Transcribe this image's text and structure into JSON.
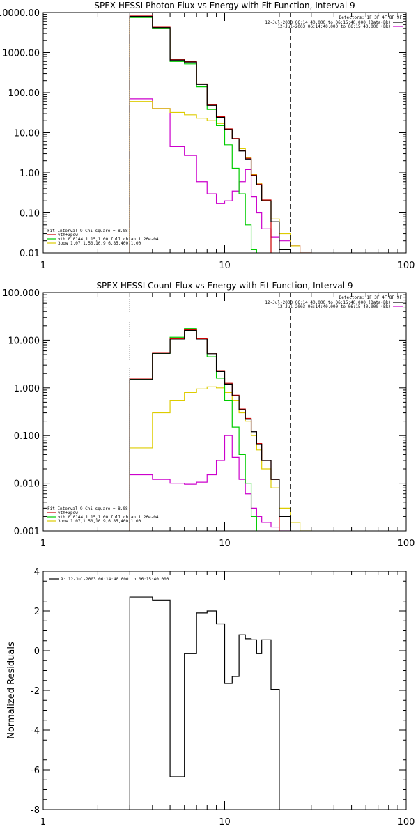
{
  "chart_data": [
    {
      "type": "line",
      "step": true,
      "title": "SPEX HESSI Photon Flux vs Energy with Fit Function, Interval 9",
      "xlabel": "",
      "ylabel": "",
      "xscale": "log",
      "yscale": "log",
      "xlim": [
        1,
        100
      ],
      "ylim": [
        0.01,
        10000
      ],
      "xticks": [
        1,
        10,
        100
      ],
      "xtick_labels": [
        "1",
        "10",
        "100"
      ],
      "yticks": [
        0.01,
        0.1,
        1,
        10,
        100,
        1000,
        10000
      ],
      "ytick_labels": [
        "0.01",
        "0.10",
        "1.00",
        "10.00",
        "100.00",
        "1000.00",
        "10000.00"
      ],
      "x_edges": [
        3,
        4,
        5,
        6,
        7,
        8,
        9,
        10,
        11,
        12,
        13,
        14,
        15,
        16,
        18,
        20,
        23,
        26,
        30
      ],
      "vlines": [
        {
          "x": 3,
          "style": "dotted",
          "color": "#ffaa00"
        },
        {
          "x": 23,
          "style": "dashed",
          "color": "#000000"
        }
      ],
      "legend_top": {
        "header": "Detectors: 1F 3F 4F 8F 9F",
        "entries": [
          {
            "label": "12-Jul-2003 06:14:40.000 to 06:15:40.000 (Data-Bk)",
            "color": "#000000"
          },
          {
            "label": "12-Jul-2003 06:14:40.000 to 06:15:40.000 (Bk)",
            "color": "#cc00cc"
          }
        ]
      },
      "legend_bottom": {
        "header": "Fit Interval 9   Chi-square = 8.08",
        "entries": [
          {
            "label": "vth+3pow",
            "color": "#cc0000"
          },
          {
            "label": "vth 0.0144,1.15,1.00  full chian 1.26e-04",
            "color": "#00cc00"
          },
          {
            "label": "3pow 1.07,1.50,10.9,6.85,400,1.00",
            "color": "#ddcc00"
          }
        ]
      },
      "series": [
        {
          "name": "Data-Bk",
          "color": "#000000",
          "values": [
            8000,
            4200,
            650,
            580,
            160,
            48,
            24,
            12,
            7,
            3.5,
            2.2,
            0.85,
            0.5,
            0.2,
            0.06,
            0.012
          ]
        },
        {
          "name": "vth+3pow",
          "color": "#cc0000",
          "values": [
            8200,
            4300,
            680,
            600,
            165,
            50,
            25,
            12.5,
            7.2,
            3.6,
            2.3,
            0.88,
            0.52,
            0.21
          ]
        },
        {
          "name": "vth",
          "color": "#00cc00",
          "values": [
            7500,
            4000,
            600,
            520,
            140,
            38,
            15,
            5,
            1.3,
            0.3,
            0.05,
            0.012
          ]
        },
        {
          "name": "3pow",
          "color": "#ddcc00",
          "values": [
            60,
            40,
            32,
            28,
            23,
            20,
            17,
            12,
            7,
            4,
            2.4,
            0.9,
            0.55,
            0.2,
            0.07,
            0.03,
            0.015,
            0.01
          ]
        },
        {
          "name": "Bk",
          "color": "#cc00cc",
          "values": [
            70,
            40,
            4.5,
            2.7,
            0.6,
            0.3,
            0.17,
            0.2,
            0.35,
            0.6,
            1.2,
            0.25,
            0.1,
            0.04,
            0.025,
            0.02,
            0.015,
            0.01
          ]
        }
      ]
    },
    {
      "type": "line",
      "step": true,
      "title": "SPEX HESSI Count Flux vs Energy with Fit Function, Interval 9",
      "xlabel": "",
      "ylabel": "",
      "xscale": "log",
      "yscale": "log",
      "xlim": [
        1,
        100
      ],
      "ylim": [
        0.001,
        100
      ],
      "xticks": [
        1,
        10,
        100
      ],
      "xtick_labels": [
        "1",
        "10",
        "100"
      ],
      "yticks": [
        0.001,
        0.01,
        0.1,
        1,
        10,
        100
      ],
      "ytick_labels": [
        "0.001",
        "0.010",
        "0.100",
        "1.000",
        "10.000",
        "100.000"
      ],
      "x_edges": [
        3,
        4,
        5,
        6,
        7,
        8,
        9,
        10,
        11,
        12,
        13,
        14,
        15,
        16,
        18,
        20,
        23,
        26,
        30
      ],
      "vlines": [
        {
          "x": 3,
          "style": "dotted",
          "color": "#000000"
        },
        {
          "x": 23,
          "style": "dashed",
          "color": "#000000"
        }
      ],
      "legend_top": {
        "header": "Detectors: 1F 3F 4F 8F 9F",
        "entries": [
          {
            "label": "12-Jul-2003 06:14:40.000 to 06:15:40.000 (Data-Bk)",
            "color": "#000000"
          },
          {
            "label": "12-Jul-2003 06:14:40.000 to 06:15:40.000 (Bk)",
            "color": "#cc00cc"
          }
        ]
      },
      "legend_bottom": {
        "header": "Fit Interval 9   Chi-square = 8.08",
        "entries": [
          {
            "label": "vth+3pow",
            "color": "#cc0000"
          },
          {
            "label": "vth 0.0144,1.15,1.00  full chian 1.26e-04",
            "color": "#00cc00"
          },
          {
            "label": "3pow 1.07,1.50,10.9,6.85,400,1.00",
            "color": "#ddcc00"
          }
        ]
      },
      "series": [
        {
          "name": "Data-Bk",
          "color": "#000000",
          "values": [
            1.5,
            5.3,
            10.5,
            16,
            10.5,
            5.2,
            2.2,
            1.2,
            0.68,
            0.35,
            0.22,
            0.12,
            0.065,
            0.03,
            0.012,
            0.002
          ]
        },
        {
          "name": "vth+3pow",
          "color": "#cc0000",
          "values": [
            1.6,
            5.5,
            11,
            17,
            11,
            5.4,
            2.3,
            1.25,
            0.7,
            0.36,
            0.23,
            0.125,
            0.068,
            0.03,
            0.012
          ]
        },
        {
          "name": "vth",
          "color": "#00cc00",
          "values": [
            1.5,
            5.3,
            11.5,
            17.5,
            10.5,
            4.5,
            1.6,
            0.55,
            0.15,
            0.04,
            0.01,
            0.002,
            0.0008
          ]
        },
        {
          "name": "3pow",
          "color": "#ddcc00",
          "values": [
            0.055,
            0.3,
            0.55,
            0.8,
            0.95,
            1.05,
            1.0,
            0.8,
            0.55,
            0.3,
            0.2,
            0.1,
            0.05,
            0.02,
            0.008,
            0.003,
            0.0015,
            0.001
          ]
        },
        {
          "name": "Bk",
          "color": "#cc00cc",
          "values": [
            0.015,
            0.012,
            0.01,
            0.0095,
            0.0105,
            0.015,
            0.03,
            0.1,
            0.035,
            0.012,
            0.006,
            0.003,
            0.002,
            0.0015,
            0.0012,
            0.001,
            0.0008
          ]
        }
      ]
    },
    {
      "type": "line",
      "step": true,
      "title": "",
      "xlabel": "",
      "ylabel": "Normalized Residuals",
      "xscale": "log",
      "yscale": "linear",
      "xlim": [
        1,
        100
      ],
      "ylim": [
        -8,
        4
      ],
      "xticks": [
        1,
        10,
        100
      ],
      "xtick_labels": [
        "1",
        "10",
        "100"
      ],
      "yticks": [
        -8,
        -6,
        -4,
        -2,
        0,
        2,
        4
      ],
      "ytick_labels": [
        "-8",
        "-6",
        "-4",
        "-2",
        "0",
        "2",
        "4"
      ],
      "x_edges": [
        3,
        4,
        5,
        6,
        7,
        8,
        9,
        10,
        11,
        12,
        13,
        14,
        15,
        16,
        18,
        20,
        23
      ],
      "legend_top": {
        "header": "",
        "entries": [
          {
            "label": "9: 12-Jul-2003 06:14:40.000 to 06:15:40.000",
            "color": "#000000"
          }
        ]
      },
      "series": [
        {
          "name": "9: 12-Jul-2003 06:14:40.000 to 06:15:40.000",
          "color": "#000000",
          "values": [
            2.7,
            2.55,
            -6.35,
            -0.15,
            1.9,
            2.0,
            1.35,
            -1.65,
            -1.3,
            0.8,
            0.6,
            0.55,
            -0.15,
            0.55,
            -1.95
          ]
        }
      ]
    }
  ]
}
